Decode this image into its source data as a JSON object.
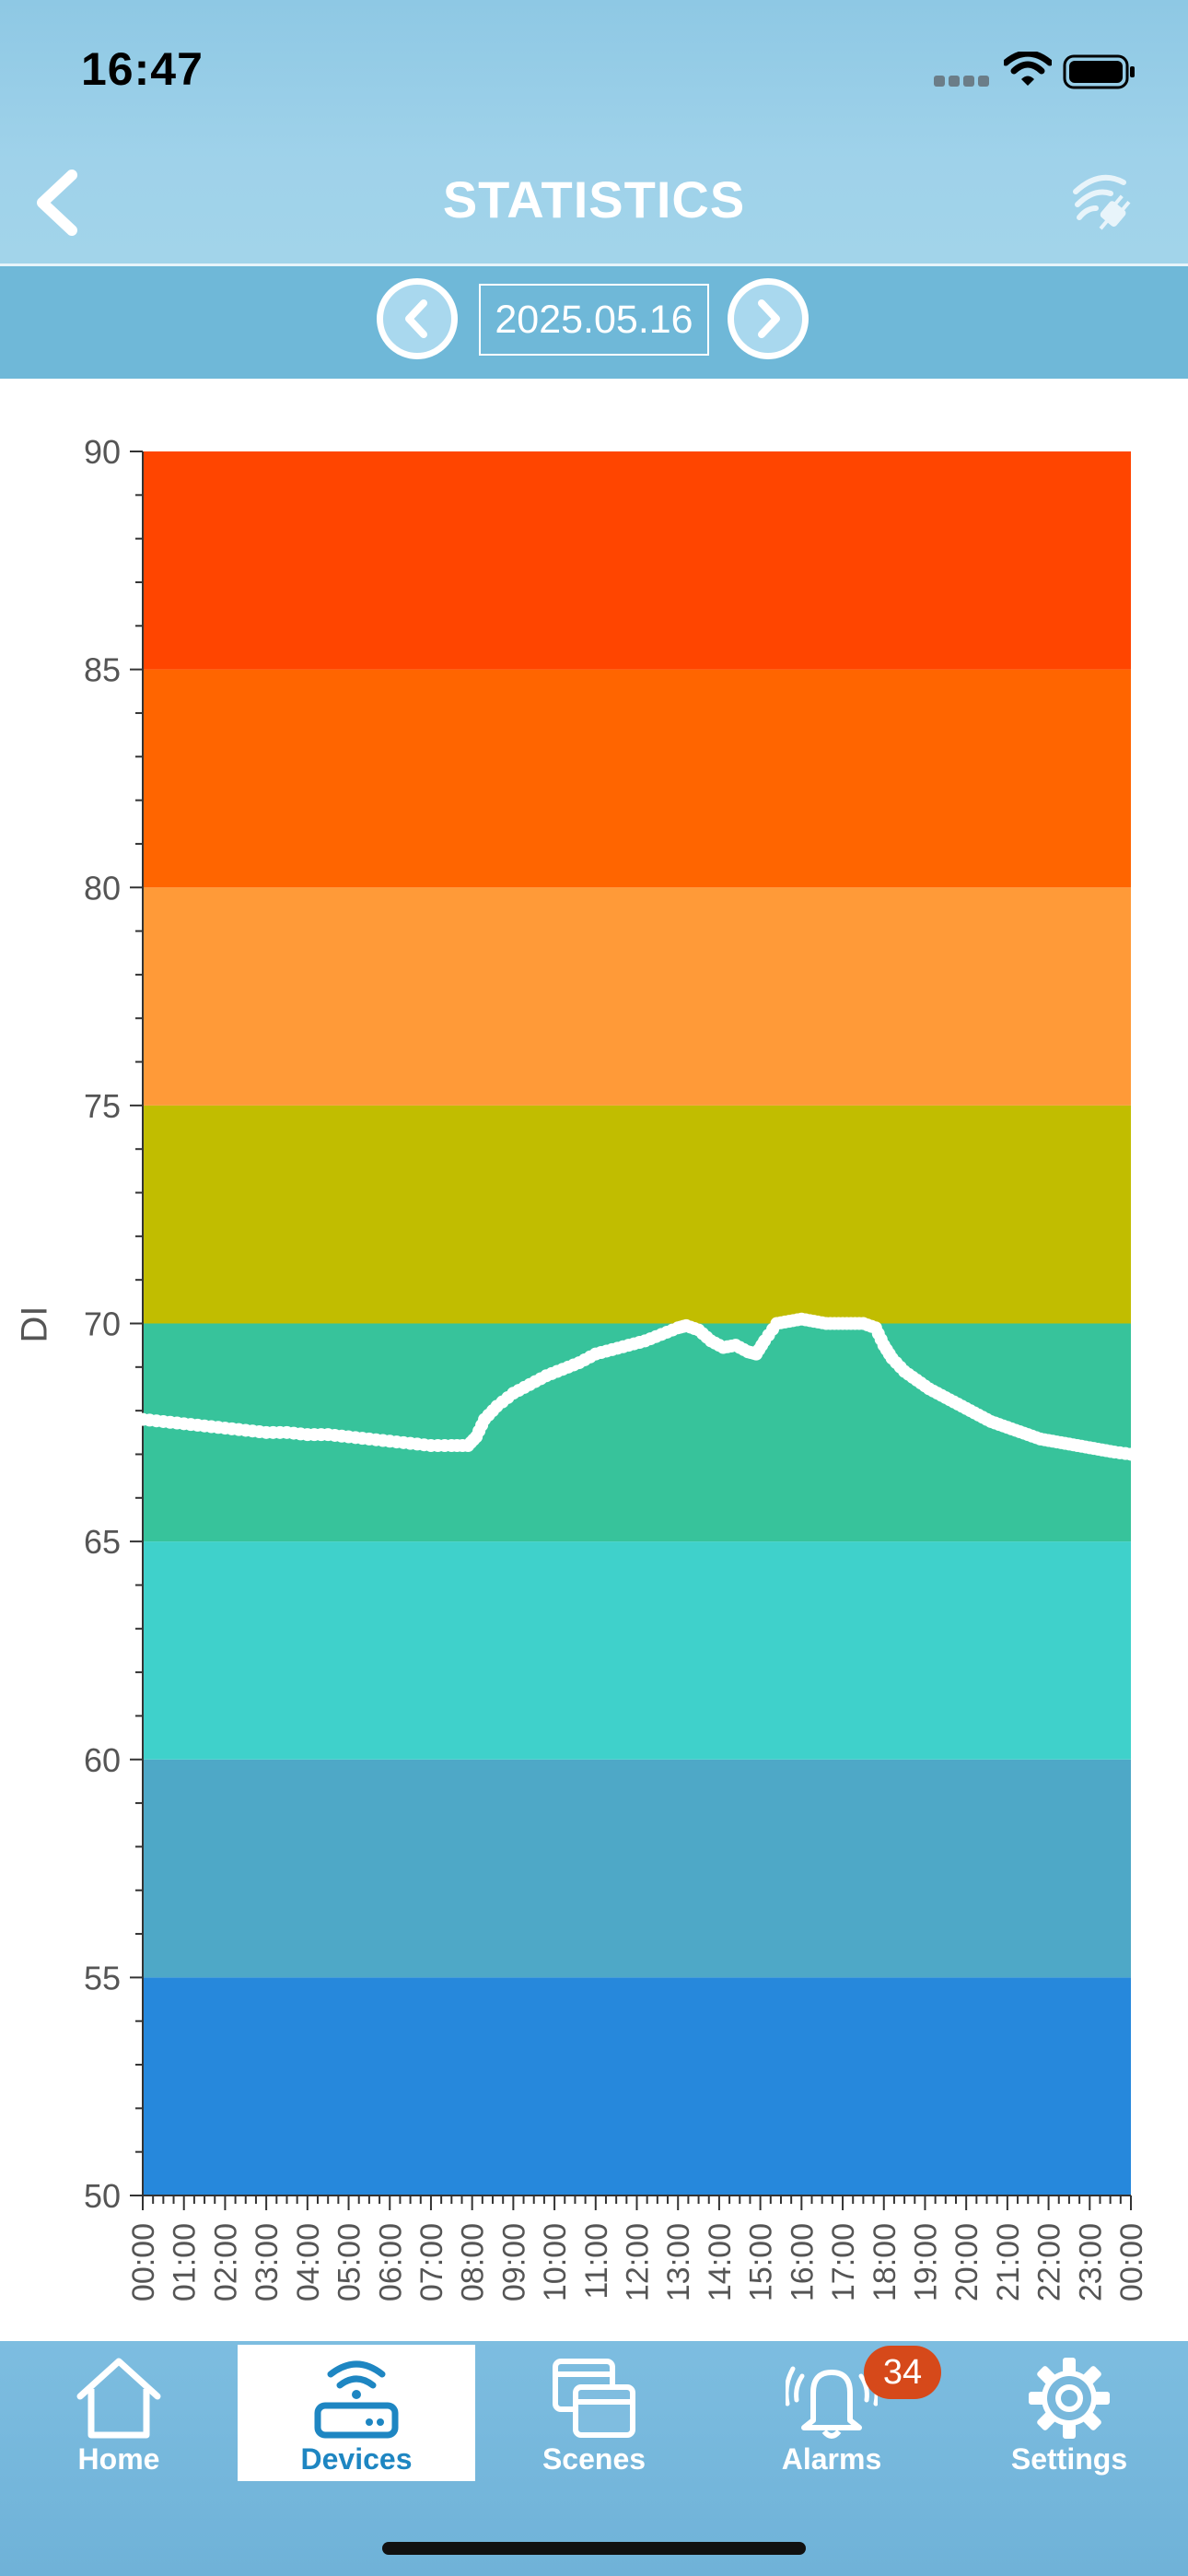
{
  "status_bar": {
    "time": "16:47"
  },
  "header": {
    "title": "STATISTICS",
    "back_icon": "chevron-left-icon",
    "connection_icon": "wireless-plug-icon"
  },
  "date_nav": {
    "date": "2025.05.16",
    "prev_icon": "chevron-left-circle-icon",
    "next_icon": "chevron-right-circle-icon"
  },
  "colors": {
    "bands": [
      "#2688dc",
      "#4ea8c7",
      "#3fd1cb",
      "#37c39b",
      "#c1bd00",
      "#ff9a38",
      "#ff6500",
      "#ff4500"
    ],
    "line": "#ffffff",
    "accent": "#1e86c2",
    "badge": "#d6491a"
  },
  "chart_data": {
    "type": "line",
    "title": "",
    "ylabel": "DI",
    "xlabel": "",
    "ylim": [
      50,
      90
    ],
    "yticks": [
      "90",
      "85",
      "80",
      "75",
      "70",
      "65",
      "60",
      "55",
      "50"
    ],
    "band_breaks": [
      50,
      55,
      60,
      65,
      70,
      75,
      80,
      85,
      90
    ],
    "xticks": [
      "00:00",
      "01:00",
      "02:00",
      "03:00",
      "04:00",
      "05:00",
      "06:00",
      "07:00",
      "08:00",
      "09:00",
      "10:00",
      "11:00",
      "12:00",
      "13:00",
      "14:00",
      "15:00",
      "16:00",
      "17:00",
      "18:00",
      "19:00",
      "20:00",
      "21:00",
      "22:00",
      "23:00",
      "00:00"
    ],
    "grid": false,
    "series": [
      {
        "hours": [
          0,
          0.5,
          1,
          1.5,
          2,
          2.5,
          3,
          3.5,
          4,
          4.5,
          5,
          5.5,
          6,
          6.5,
          7,
          7.5,
          7.9,
          8.1,
          8.3,
          8.6,
          9,
          9.4,
          9.8,
          10.2,
          10.6,
          11,
          11.4,
          11.8,
          12.2,
          12.6,
          13,
          13.2,
          13.5,
          13.8,
          14.1,
          14.4,
          14.7,
          14.9,
          15.1,
          15.4,
          15.7,
          16,
          16.3,
          16.6,
          16.9,
          17.2,
          17.5,
          17.8,
          18,
          18.2,
          18.5,
          18.8,
          19.1,
          19.4,
          19.7,
          20,
          20.3,
          20.6,
          20.9,
          21.2,
          21.5,
          21.8,
          22.1,
          22.4,
          22.7,
          23,
          23.3,
          23.6,
          24
        ],
        "values": [
          67.8,
          67.75,
          67.7,
          67.65,
          67.6,
          67.55,
          67.5,
          67.5,
          67.45,
          67.45,
          67.4,
          67.35,
          67.3,
          67.25,
          67.2,
          67.2,
          67.2,
          67.4,
          67.8,
          68.1,
          68.4,
          68.6,
          68.8,
          68.95,
          69.1,
          69.3,
          69.4,
          69.5,
          69.6,
          69.75,
          69.9,
          69.95,
          69.85,
          69.6,
          69.45,
          69.5,
          69.35,
          69.3,
          69.6,
          70.0,
          70.05,
          70.1,
          70.05,
          70.0,
          70.0,
          70.0,
          70.0,
          69.9,
          69.5,
          69.2,
          68.9,
          68.7,
          68.5,
          68.35,
          68.2,
          68.05,
          67.9,
          67.75,
          67.65,
          67.55,
          67.45,
          67.35,
          67.3,
          67.25,
          67.2,
          67.15,
          67.1,
          67.05,
          67.0
        ]
      }
    ]
  },
  "tabs": [
    {
      "label": "Home",
      "icon": "home-icon"
    },
    {
      "label": "Devices",
      "icon": "router-wifi-icon"
    },
    {
      "label": "Scenes",
      "icon": "scenes-icon"
    },
    {
      "label": "Alarms",
      "icon": "bell-alarm-icon"
    },
    {
      "label": "Settings",
      "icon": "gear-icon"
    }
  ],
  "alarms_badge": "34"
}
